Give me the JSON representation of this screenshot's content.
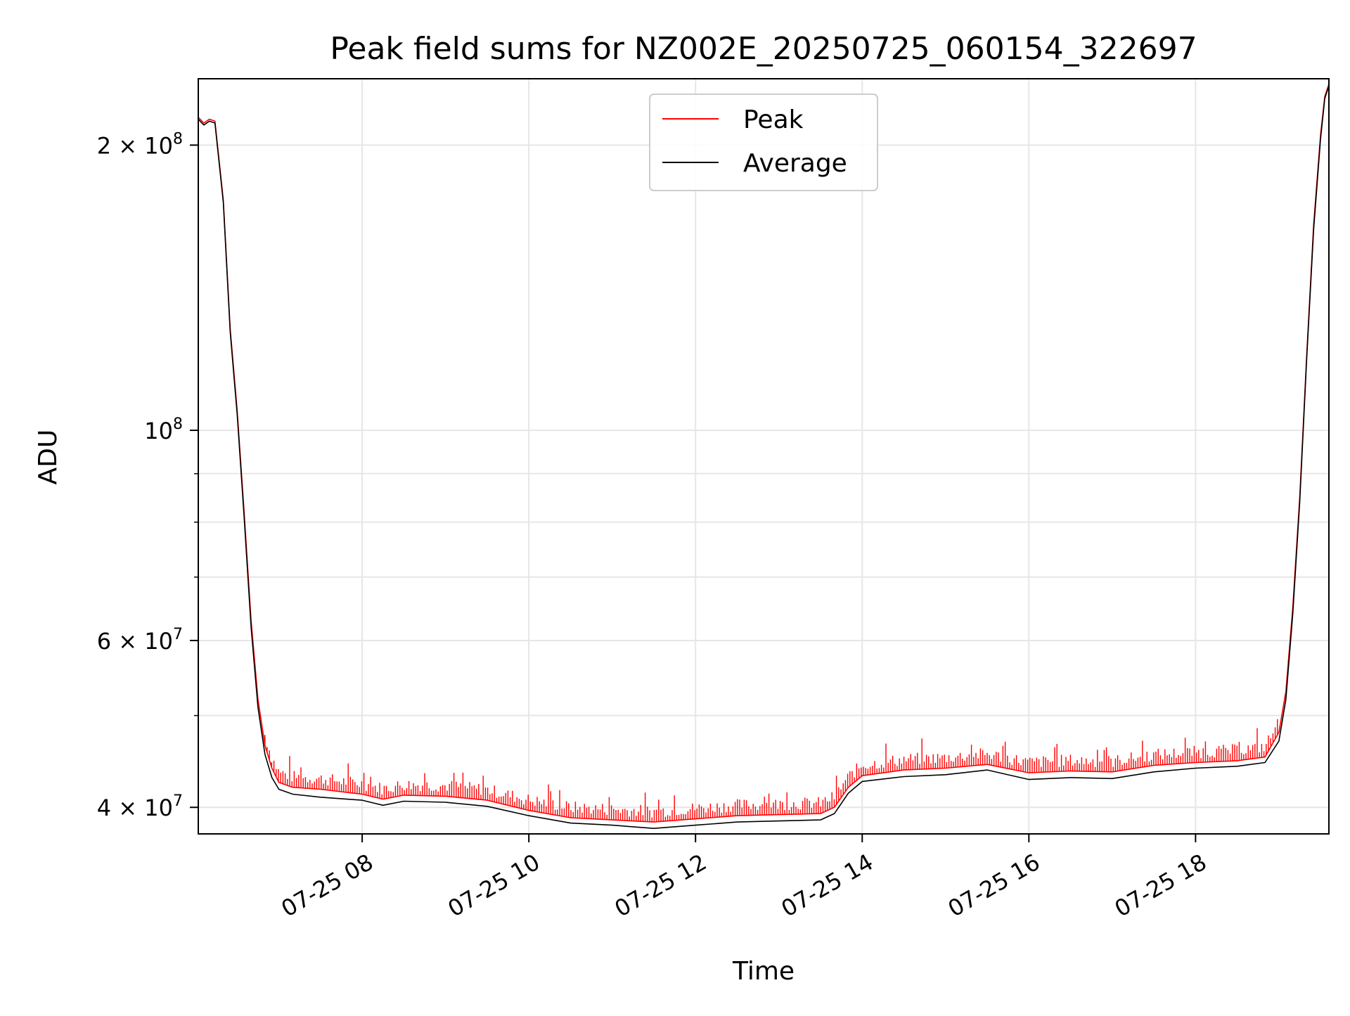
{
  "chart_data": {
    "type": "line",
    "title": "Peak field sums for NZ002E_20250725_060154_322697",
    "xlabel": "Time",
    "ylabel": "ADU",
    "x_axis": {
      "scale": "time",
      "range": [
        "2025-07-25T06:02",
        "2025-07-25T19:36"
      ],
      "ticks": [
        {
          "t": "2025-07-25T08:00",
          "label": "07-25 08"
        },
        {
          "t": "2025-07-25T10:00",
          "label": "07-25 10"
        },
        {
          "t": "2025-07-25T12:00",
          "label": "07-25 12"
        },
        {
          "t": "2025-07-25T14:00",
          "label": "07-25 14"
        },
        {
          "t": "2025-07-25T16:00",
          "label": "07-25 16"
        },
        {
          "t": "2025-07-25T18:00",
          "label": "07-25 18"
        }
      ]
    },
    "y_axis": {
      "scale": "log",
      "range": [
        37500000,
        235000000
      ],
      "major_ticks": [
        {
          "v": 40000000,
          "label": "4 × 10",
          "exp": "7"
        },
        {
          "v": 60000000,
          "label": "6 × 10",
          "exp": "7"
        },
        {
          "v": 100000000,
          "label": "10",
          "exp": "8"
        },
        {
          "v": 200000000,
          "label": "2 × 10",
          "exp": "8"
        }
      ],
      "minor_ticks": [
        50000000,
        70000000,
        80000000,
        90000000
      ]
    },
    "grid": true,
    "legend_position": "top-center",
    "series": [
      {
        "name": "Peak",
        "color": "#ff0000",
        "spikes": true,
        "points": [
          [
            "2025-07-25T06:02",
            214000000
          ],
          [
            "2025-07-25T06:06",
            211000000
          ],
          [
            "2025-07-25T06:10",
            213000000
          ],
          [
            "2025-07-25T06:14",
            212000000
          ],
          [
            "2025-07-25T06:20",
            175000000
          ],
          [
            "2025-07-25T06:25",
            128000000
          ],
          [
            "2025-07-25T06:30",
            105000000
          ],
          [
            "2025-07-25T06:35",
            82000000
          ],
          [
            "2025-07-25T06:40",
            63000000
          ],
          [
            "2025-07-25T06:45",
            52000000
          ],
          [
            "2025-07-25T06:50",
            46500000
          ],
          [
            "2025-07-25T06:55",
            44000000
          ],
          [
            "2025-07-25T07:00",
            42500000
          ],
          [
            "2025-07-25T07:10",
            42000000
          ],
          [
            "2025-07-25T07:30",
            41800000
          ],
          [
            "2025-07-25T08:00",
            41300000
          ],
          [
            "2025-07-25T08:15",
            40800000
          ],
          [
            "2025-07-25T08:30",
            41200000
          ],
          [
            "2025-07-25T09:00",
            41100000
          ],
          [
            "2025-07-25T09:30",
            40700000
          ],
          [
            "2025-07-25T10:00",
            39700000
          ],
          [
            "2025-07-25T10:30",
            39000000
          ],
          [
            "2025-07-25T11:00",
            38800000
          ],
          [
            "2025-07-25T11:30",
            38600000
          ],
          [
            "2025-07-25T12:00",
            38900000
          ],
          [
            "2025-07-25T12:30",
            39200000
          ],
          [
            "2025-07-25T13:00",
            39300000
          ],
          [
            "2025-07-25T13:30",
            39400000
          ],
          [
            "2025-07-25T13:40",
            40000000
          ],
          [
            "2025-07-25T13:50",
            42000000
          ],
          [
            "2025-07-25T14:00",
            43200000
          ],
          [
            "2025-07-25T14:30",
            43800000
          ],
          [
            "2025-07-25T15:00",
            44000000
          ],
          [
            "2025-07-25T15:30",
            44400000
          ],
          [
            "2025-07-25T16:00",
            43500000
          ],
          [
            "2025-07-25T16:30",
            43700000
          ],
          [
            "2025-07-25T17:00",
            43600000
          ],
          [
            "2025-07-25T17:30",
            44300000
          ],
          [
            "2025-07-25T18:00",
            44600000
          ],
          [
            "2025-07-25T18:30",
            44800000
          ],
          [
            "2025-07-25T18:50",
            45200000
          ],
          [
            "2025-07-25T19:00",
            48000000
          ],
          [
            "2025-07-25T19:05",
            53000000
          ],
          [
            "2025-07-25T19:10",
            65000000
          ],
          [
            "2025-07-25T19:15",
            85000000
          ],
          [
            "2025-07-25T19:20",
            120000000
          ],
          [
            "2025-07-25T19:25",
            165000000
          ],
          [
            "2025-07-25T19:30",
            205000000
          ],
          [
            "2025-07-25T19:33",
            225000000
          ],
          [
            "2025-07-25T19:36",
            232000000
          ]
        ]
      },
      {
        "name": "Average",
        "color": "#000000",
        "spikes": false,
        "points": [
          [
            "2025-07-25T06:02",
            213000000
          ],
          [
            "2025-07-25T06:06",
            210000000
          ],
          [
            "2025-07-25T06:10",
            212000000
          ],
          [
            "2025-07-25T06:14",
            211000000
          ],
          [
            "2025-07-25T06:20",
            174000000
          ],
          [
            "2025-07-25T06:25",
            127000000
          ],
          [
            "2025-07-25T06:30",
            104000000
          ],
          [
            "2025-07-25T06:35",
            81000000
          ],
          [
            "2025-07-25T06:40",
            62000000
          ],
          [
            "2025-07-25T06:45",
            51000000
          ],
          [
            "2025-07-25T06:50",
            45500000
          ],
          [
            "2025-07-25T06:55",
            43000000
          ],
          [
            "2025-07-25T07:00",
            41800000
          ],
          [
            "2025-07-25T07:10",
            41300000
          ],
          [
            "2025-07-25T07:30",
            41000000
          ],
          [
            "2025-07-25T08:00",
            40700000
          ],
          [
            "2025-07-25T08:15",
            40200000
          ],
          [
            "2025-07-25T08:30",
            40600000
          ],
          [
            "2025-07-25T09:00",
            40500000
          ],
          [
            "2025-07-25T09:30",
            40100000
          ],
          [
            "2025-07-25T10:00",
            39200000
          ],
          [
            "2025-07-25T10:30",
            38500000
          ],
          [
            "2025-07-25T11:00",
            38300000
          ],
          [
            "2025-07-25T11:30",
            38000000
          ],
          [
            "2025-07-25T12:00",
            38300000
          ],
          [
            "2025-07-25T12:30",
            38600000
          ],
          [
            "2025-07-25T13:00",
            38700000
          ],
          [
            "2025-07-25T13:30",
            38800000
          ],
          [
            "2025-07-25T13:40",
            39400000
          ],
          [
            "2025-07-25T13:50",
            41400000
          ],
          [
            "2025-07-25T14:00",
            42600000
          ],
          [
            "2025-07-25T14:30",
            43100000
          ],
          [
            "2025-07-25T15:00",
            43300000
          ],
          [
            "2025-07-25T15:30",
            43800000
          ],
          [
            "2025-07-25T16:00",
            42800000
          ],
          [
            "2025-07-25T16:30",
            43000000
          ],
          [
            "2025-07-25T17:00",
            42900000
          ],
          [
            "2025-07-25T17:30",
            43600000
          ],
          [
            "2025-07-25T18:00",
            44000000
          ],
          [
            "2025-07-25T18:30",
            44200000
          ],
          [
            "2025-07-25T18:50",
            44600000
          ],
          [
            "2025-07-25T19:00",
            47000000
          ],
          [
            "2025-07-25T19:05",
            52000000
          ],
          [
            "2025-07-25T19:10",
            64000000
          ],
          [
            "2025-07-25T19:15",
            84000000
          ],
          [
            "2025-07-25T19:20",
            119000000
          ],
          [
            "2025-07-25T19:25",
            163000000
          ],
          [
            "2025-07-25T19:30",
            203000000
          ],
          [
            "2025-07-25T19:33",
            224000000
          ],
          [
            "2025-07-25T19:36",
            231000000
          ]
        ]
      }
    ]
  }
}
